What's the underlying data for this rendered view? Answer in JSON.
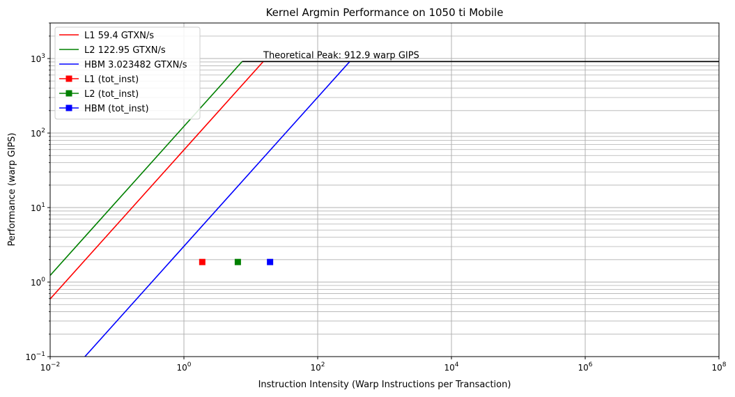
{
  "chart_data": {
    "type": "line",
    "title": "Kernel Argmin Performance on 1050 ti Mobile",
    "xlabel": "Instruction Intensity (Warp Instructions per Transaction)",
    "ylabel": "Performance (warp GIPS)",
    "xscale": "log",
    "yscale": "log",
    "xlim": [
      0.01,
      100000000
    ],
    "ylim": [
      0.1,
      3000
    ],
    "x_ticks": [
      {
        "value": 0.01,
        "base": "10",
        "exp": "−2"
      },
      {
        "value": 1,
        "base": "10",
        "exp": "0"
      },
      {
        "value": 100,
        "base": "10",
        "exp": "2"
      },
      {
        "value": 10000,
        "base": "10",
        "exp": "4"
      },
      {
        "value": 1000000,
        "base": "10",
        "exp": "6"
      },
      {
        "value": 100000000,
        "base": "10",
        "exp": "8"
      }
    ],
    "y_ticks": [
      {
        "value": 0.1,
        "base": "10",
        "exp": "−1"
      },
      {
        "value": 1,
        "base": "10",
        "exp": "0"
      },
      {
        "value": 10,
        "base": "10",
        "exp": "1"
      },
      {
        "value": 100,
        "base": "10",
        "exp": "2"
      },
      {
        "value": 1000,
        "base": "10",
        "exp": "3"
      }
    ],
    "grid": "major x, major and minor y",
    "legend_position": "top-left",
    "peak": {
      "value": 912.9,
      "x_start": 7.42,
      "x_end": 100000000,
      "color": "#000000"
    },
    "annotation": "Theoretical Peak: 912.9 warp GIPS",
    "series": [
      {
        "name": "L1 59.4 GTXN/s",
        "kind": "line",
        "color": "#ff0000",
        "bandwidth": 59.4
      },
      {
        "name": "L2 122.95 GTXN/s",
        "kind": "line",
        "color": "#008000",
        "bandwidth": 122.95
      },
      {
        "name": "HBM 3.023482 GTXN/s",
        "kind": "line",
        "color": "#0000ff",
        "bandwidth": 3.023482
      },
      {
        "name": "L1 (tot_inst)",
        "kind": "marker",
        "color": "#ff0000",
        "x": 1.88,
        "y": 1.86
      },
      {
        "name": "L2 (tot_inst)",
        "kind": "marker",
        "color": "#008000",
        "x": 6.4,
        "y": 1.86
      },
      {
        "name": "HBM (tot_inst)",
        "kind": "marker",
        "color": "#0000ff",
        "x": 19.4,
        "y": 1.86
      }
    ]
  }
}
